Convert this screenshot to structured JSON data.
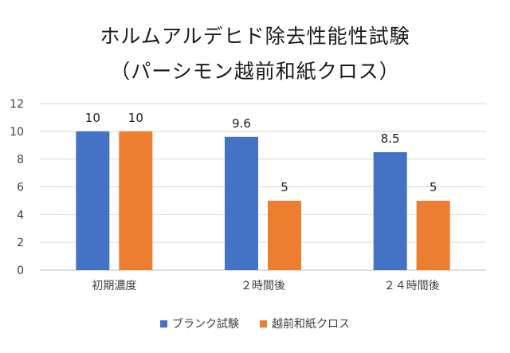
{
  "chart_data": {
    "type": "bar",
    "title_lines": [
      "ホルムアルデヒド除去性能性試験",
      "（パーシモン越前和紙クロス）"
    ],
    "categories": [
      "初期濃度",
      "２時間後",
      "２４時間後"
    ],
    "series": [
      {
        "name": "ブランク試験",
        "values": [
          10,
          9.6,
          8.5
        ],
        "color": "#4472C4"
      },
      {
        "name": "越前和紙クロス",
        "values": [
          10,
          5,
          5
        ],
        "color": "#ED7D31"
      }
    ],
    "yticks": [
      0,
      2,
      4,
      6,
      8,
      10,
      12
    ],
    "ylim": [
      0,
      12
    ],
    "grid": true,
    "data_labels": true,
    "legend_position": "bottom"
  }
}
